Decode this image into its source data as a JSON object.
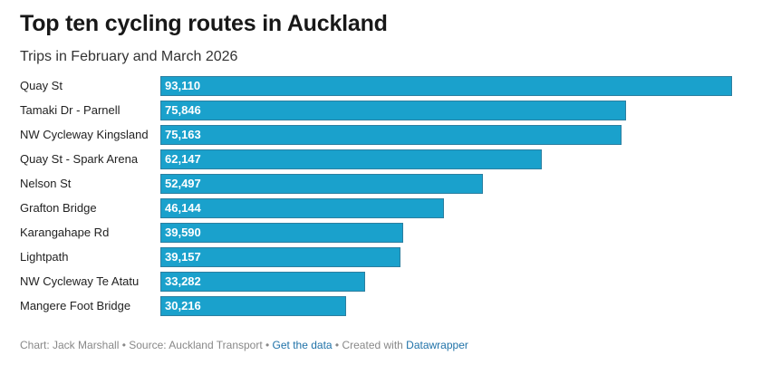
{
  "header": {
    "title": "Top ten cycling routes in Auckland",
    "subtitle": "Trips in February and March 2026"
  },
  "chart_data": {
    "type": "bar",
    "orientation": "horizontal",
    "title": "Top ten cycling routes in Auckland",
    "subtitle": "Trips in February and March 2026",
    "xlabel": "",
    "ylabel": "",
    "grid": false,
    "bar_color": "#1aa1cc",
    "categories": [
      "Quay St",
      "Tamaki Dr - Parnell",
      "NW Cycleway Kingsland",
      "Quay St - Spark Arena",
      "Nelson St",
      "Grafton Bridge",
      "Karangahape Rd",
      "Lightpath",
      "NW Cycleway Te Atatu",
      "Mangere Foot Bridge"
    ],
    "values": [
      93110,
      75846,
      75163,
      62147,
      52497,
      46144,
      39590,
      39157,
      33282,
      30216
    ],
    "value_labels": [
      "93,110",
      "75,846",
      "75,163",
      "62,147",
      "52,497",
      "46,144",
      "39,590",
      "39,157",
      "33,282",
      "30,216"
    ]
  },
  "footer": {
    "chart_credit": "Chart: Jack Marshall",
    "sep1": " • ",
    "source": "Source: Auckland Transport",
    "sep2": " • ",
    "get_data_label": "Get the data",
    "sep3": " • ",
    "created_with": "Created with ",
    "datawrapper_label": "Datawrapper"
  }
}
